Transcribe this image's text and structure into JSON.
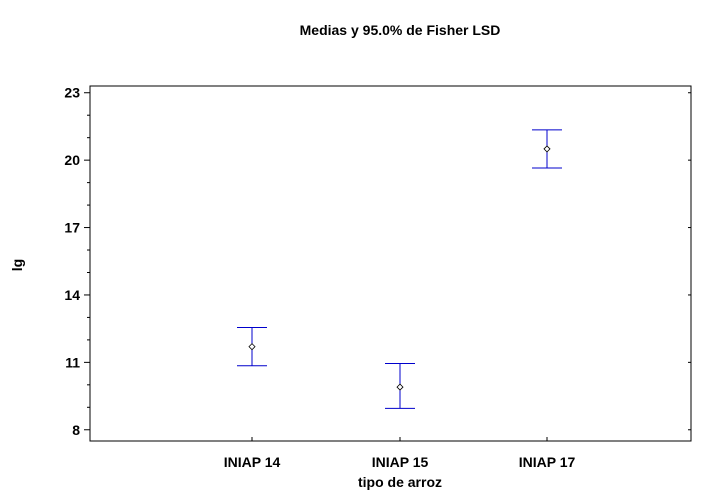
{
  "chart_data": {
    "type": "interval",
    "title": "Medias y 95.0% de Fisher LSD",
    "xlabel": "tipo de arroz",
    "ylabel": "lg",
    "categories": [
      "INIAP 14",
      "INIAP 15",
      "INIAP 17"
    ],
    "means": [
      11.7,
      9.9,
      20.5
    ],
    "lower": [
      10.85,
      8.95,
      19.65
    ],
    "upper": [
      12.55,
      10.95,
      21.35
    ],
    "ylim": [
      7.5,
      23.3
    ],
    "yticks": [
      8,
      11,
      14,
      17,
      20,
      23
    ],
    "ytick_labels": [
      "8",
      "11",
      "14",
      "17",
      "20",
      "23"
    ],
    "y_minor_step": 1,
    "grid": false,
    "colors": {
      "interval": "#0000cc",
      "marker": "#000000",
      "axis": "#000000"
    }
  }
}
